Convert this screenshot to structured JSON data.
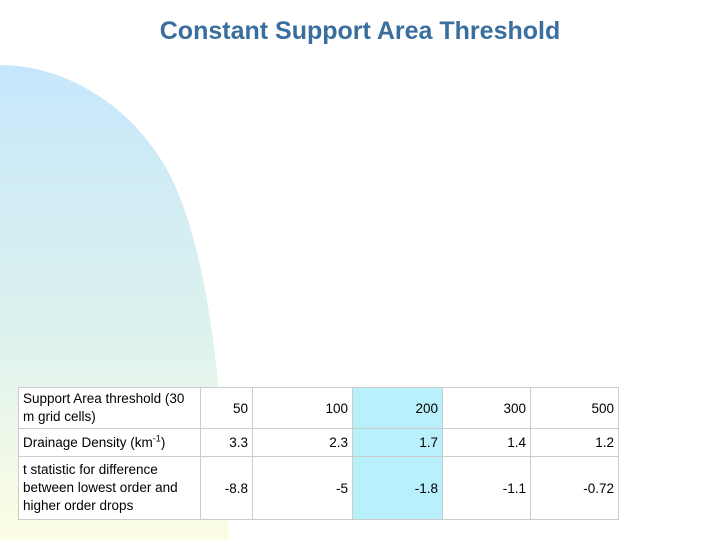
{
  "title": "Constant Support Area Threshold",
  "table": {
    "rows": [
      {
        "label": "Support Area threshold (30 m grid cells)",
        "values": [
          "50",
          "100",
          "200",
          "300",
          "500"
        ]
      },
      {
        "label": "Drainage Density (km",
        "label_sup": "-1",
        "label_suffix": ")",
        "values": [
          "3.3",
          "2.3",
          "1.7",
          "1.4",
          "1.2"
        ]
      },
      {
        "label": "t statistic for difference between lowest order and higher order drops",
        "values": [
          "-8.8",
          "-5",
          "-1.8",
          "-1.1",
          "-0.72"
        ]
      }
    ]
  },
  "colors": {
    "title": "#3a6e9e",
    "highlight_column": "#b8f0fc"
  }
}
